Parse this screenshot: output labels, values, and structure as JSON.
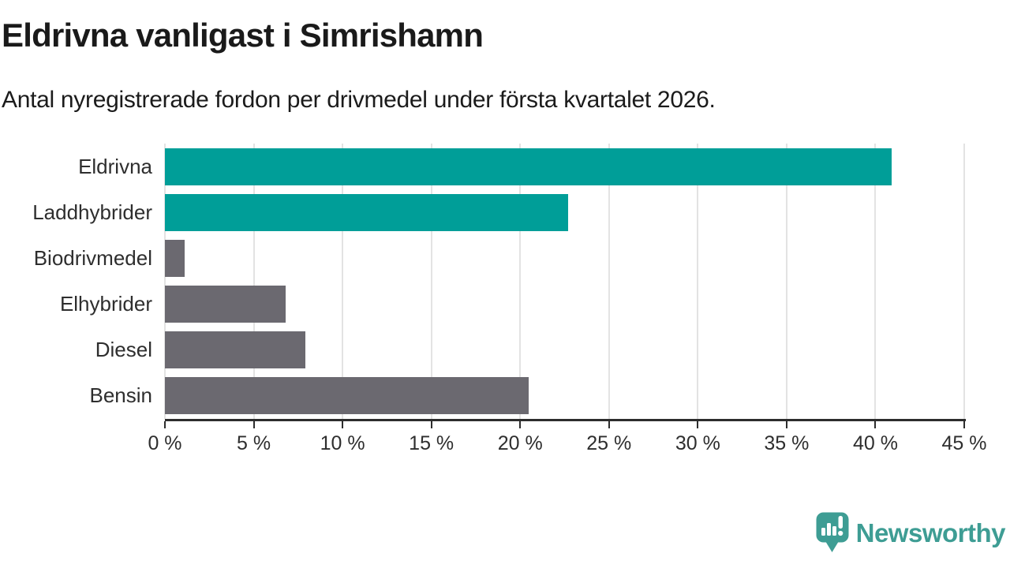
{
  "header": {
    "title": "Eldrivna vanligast i Simrishamn",
    "subtitle": "Antal nyregistrerade fordon per drivmedel under första kvartalet 2026."
  },
  "chart_data": {
    "type": "bar",
    "orientation": "horizontal",
    "title": "Eldrivna vanligast i Simrishamn",
    "categories": [
      "Eldrivna",
      "Laddhybrider",
      "Biodrivmedel",
      "Elhybrider",
      "Diesel",
      "Bensin"
    ],
    "values": [
      40.9,
      22.7,
      1.1,
      6.8,
      7.9,
      20.5
    ],
    "unit": "%",
    "bar_colors": [
      "#009E98",
      "#009E98",
      "#6B6970",
      "#6B6970",
      "#6B6970",
      "#6B6970"
    ],
    "highlight_color": "#009E98",
    "default_color": "#6B6970",
    "xlim": [
      0,
      45
    ],
    "xticks": [
      0,
      5,
      10,
      15,
      20,
      25,
      30,
      35,
      40,
      45
    ],
    "xtick_suffix": " %",
    "grid": true,
    "legend": false
  },
  "colors": {
    "accent_teal": "#009E98",
    "bar_gray": "#6B6970",
    "gridline": "#e3e3e3",
    "axis": "#2d2d2d",
    "text_dark": "#1a1a1a",
    "logo_teal": "#3E9D94"
  },
  "footer": {
    "brand": "Newsworthy",
    "logo_icon": "speech-bubble-bar-chart"
  }
}
